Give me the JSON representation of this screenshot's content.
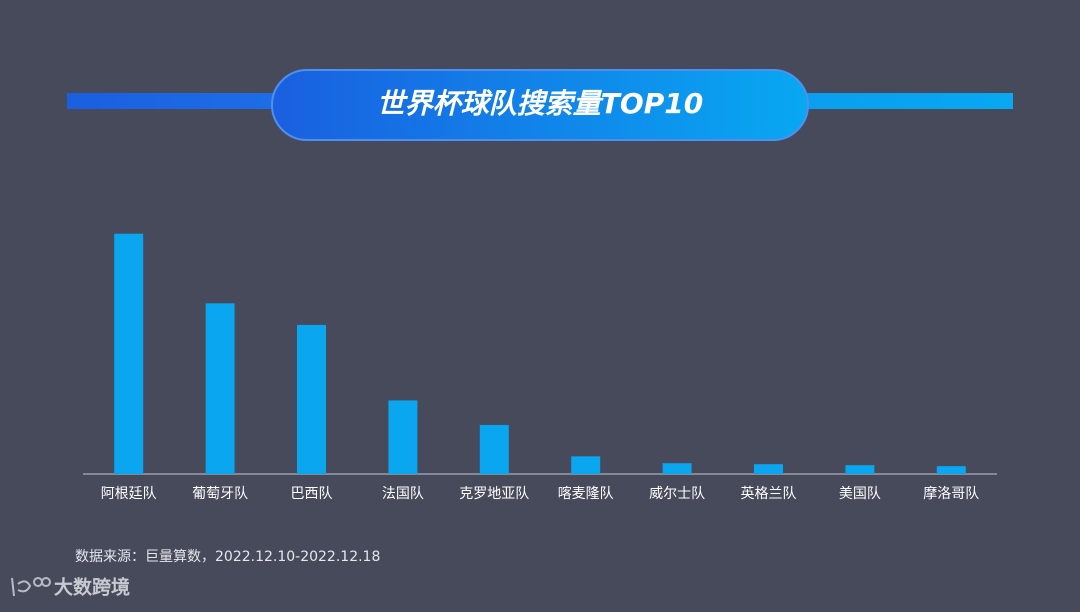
{
  "chart_data": {
    "type": "bar",
    "title": "世界杯球队搜索量TOP10",
    "categories": [
      "阿根廷队",
      "葡萄牙队",
      "巴西队",
      "法国队",
      "克罗地亚队",
      "喀麦隆队",
      "威尔士队",
      "英格兰队",
      "美国队",
      "摩洛哥队"
    ],
    "values": [
      245,
      174,
      152,
      75,
      50,
      18,
      11,
      10,
      9,
      8
    ],
    "color": "#0aa6f0",
    "ylim": [
      0,
      260
    ],
    "source": "数据来源：巨量算数，2022.12.10-2022.12.18",
    "brand": "大数跨境"
  }
}
